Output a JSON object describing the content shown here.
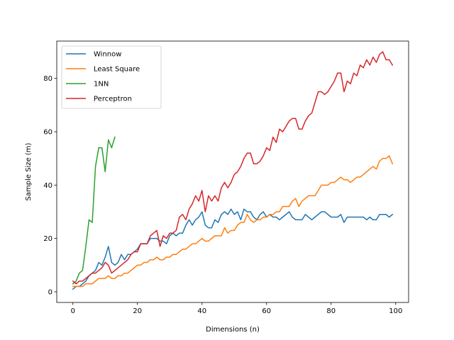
{
  "chart_data": {
    "type": "line",
    "title": "",
    "xlabel": "Dimensions (n)",
    "ylabel": "Sample Size (m)",
    "xlim": [
      -5,
      104
    ],
    "ylim": [
      -4,
      94
    ],
    "xticks": [
      0,
      20,
      40,
      60,
      80,
      100
    ],
    "yticks": [
      0,
      20,
      40,
      60,
      80
    ],
    "grid": false,
    "legend_position": "top-left",
    "series": [
      {
        "name": "Winnow",
        "color": "#1f77b4",
        "x": [
          0,
          1,
          2,
          3,
          4,
          5,
          6,
          7,
          8,
          9,
          10,
          11,
          12,
          13,
          14,
          15,
          16,
          17,
          18,
          19,
          20,
          21,
          22,
          23,
          24,
          25,
          26,
          27,
          28,
          29,
          30,
          31,
          32,
          33,
          34,
          35,
          36,
          37,
          38,
          39,
          40,
          41,
          42,
          43,
          44,
          45,
          46,
          47,
          48,
          49,
          50,
          51,
          52,
          53,
          54,
          55,
          56,
          57,
          58,
          59,
          60,
          61,
          62,
          63,
          64,
          65,
          66,
          67,
          68,
          69,
          70,
          71,
          72,
          73,
          74,
          75,
          76,
          77,
          78,
          79,
          80,
          81,
          82,
          83,
          84,
          85,
          86,
          87,
          88,
          89,
          90,
          91,
          92,
          93,
          94,
          95,
          96,
          97,
          98,
          99
        ],
        "y": [
          1,
          2,
          2,
          3,
          4,
          6,
          7,
          8,
          11,
          10,
          13,
          17,
          11,
          10,
          11,
          14,
          12,
          14,
          14,
          15,
          16,
          18,
          18,
          18,
          20,
          20,
          20,
          19,
          19,
          18,
          21,
          22,
          21,
          22,
          22,
          25,
          27,
          25,
          27,
          28,
          30,
          25,
          24,
          24,
          27,
          26,
          29,
          30,
          29,
          31,
          29,
          30,
          27,
          31,
          30,
          30,
          28,
          27,
          29,
          30,
          28,
          29,
          28,
          28,
          27,
          28,
          29,
          30,
          28,
          27,
          27,
          27,
          29,
          28,
          27,
          28,
          29,
          30,
          30,
          29,
          28,
          28,
          28,
          29,
          26,
          28,
          28,
          28,
          28,
          28,
          28,
          27,
          28,
          27,
          27,
          29,
          29,
          29,
          28,
          29
        ]
      },
      {
        "name": "Least Square",
        "color": "#ff7f0e",
        "x": [
          0,
          1,
          2,
          3,
          4,
          5,
          6,
          7,
          8,
          9,
          10,
          11,
          12,
          13,
          14,
          15,
          16,
          17,
          18,
          19,
          20,
          21,
          22,
          23,
          24,
          25,
          26,
          27,
          28,
          29,
          30,
          31,
          32,
          33,
          34,
          35,
          36,
          37,
          38,
          39,
          40,
          41,
          42,
          43,
          44,
          45,
          46,
          47,
          48,
          49,
          50,
          51,
          52,
          53,
          54,
          55,
          56,
          57,
          58,
          59,
          60,
          61,
          62,
          63,
          64,
          65,
          66,
          67,
          68,
          69,
          70,
          71,
          72,
          73,
          74,
          75,
          76,
          77,
          78,
          79,
          80,
          81,
          82,
          83,
          84,
          85,
          86,
          87,
          88,
          89,
          90,
          91,
          92,
          93,
          94,
          95,
          96,
          97,
          98,
          99
        ],
        "y": [
          2,
          2,
          2,
          2,
          3,
          3,
          3,
          4,
          5,
          5,
          5,
          6,
          5,
          5,
          6,
          6,
          7,
          7,
          8,
          9,
          10,
          10,
          11,
          11,
          12,
          12,
          13,
          12,
          12,
          13,
          13,
          14,
          14,
          15,
          16,
          16,
          17,
          18,
          18,
          19,
          20,
          19,
          19,
          20,
          21,
          21,
          21,
          24,
          22,
          23,
          23,
          25,
          26,
          26,
          29,
          27,
          26,
          27,
          27,
          28,
          28,
          29,
          29,
          30,
          30,
          32,
          32,
          32,
          34,
          35,
          32,
          34,
          35,
          36,
          36,
          36,
          38,
          40,
          40,
          40,
          41,
          41,
          42,
          43,
          42,
          42,
          41,
          42,
          43,
          43,
          44,
          45,
          46,
          47,
          46,
          49,
          50,
          50,
          51,
          48
        ]
      },
      {
        "name": "1NN",
        "color": "#2ca02c",
        "x": [
          0,
          1,
          2,
          3,
          4,
          5,
          6,
          7,
          8,
          9,
          10,
          11,
          12,
          13
        ],
        "y": [
          3,
          4,
          7,
          8,
          17,
          27,
          26,
          47,
          54,
          54,
          45,
          57,
          54,
          58
        ]
      },
      {
        "name": "Perceptron",
        "color": "#d62728",
        "x": [
          0,
          1,
          2,
          3,
          4,
          5,
          6,
          7,
          8,
          9,
          10,
          11,
          12,
          13,
          14,
          15,
          16,
          17,
          18,
          19,
          20,
          21,
          22,
          23,
          24,
          25,
          26,
          27,
          28,
          29,
          30,
          31,
          32,
          33,
          34,
          35,
          36,
          37,
          38,
          39,
          40,
          41,
          42,
          43,
          44,
          45,
          46,
          47,
          48,
          49,
          50,
          51,
          52,
          53,
          54,
          55,
          56,
          57,
          58,
          59,
          60,
          61,
          62,
          63,
          64,
          65,
          66,
          67,
          68,
          69,
          70,
          71,
          72,
          73,
          74,
          75,
          76,
          77,
          78,
          79,
          80,
          81,
          82,
          83,
          84,
          85,
          86,
          87,
          88,
          89,
          90,
          91,
          92,
          93,
          94,
          95,
          96,
          97,
          98,
          99
        ],
        "y": [
          4,
          3,
          4,
          4,
          5,
          6,
          7,
          7,
          8,
          9,
          11,
          10,
          7,
          8,
          9,
          10,
          11,
          12,
          14,
          15,
          15,
          18,
          18,
          18,
          21,
          22,
          23,
          17,
          21,
          20,
          22,
          22,
          23,
          28,
          29,
          27,
          31,
          33,
          36,
          34,
          38,
          30,
          36,
          34,
          36,
          34,
          39,
          41,
          39,
          41,
          44,
          45,
          47,
          50,
          52,
          52,
          48,
          48,
          49,
          51,
          54,
          53,
          58,
          56,
          61,
          60,
          62,
          64,
          65,
          65,
          61,
          61,
          64,
          66,
          67,
          71,
          75,
          75,
          74,
          75,
          77,
          79,
          82,
          82,
          75,
          79,
          78,
          82,
          81,
          85,
          84,
          87,
          85,
          88,
          86,
          89,
          90,
          87,
          87,
          85
        ]
      }
    ]
  }
}
